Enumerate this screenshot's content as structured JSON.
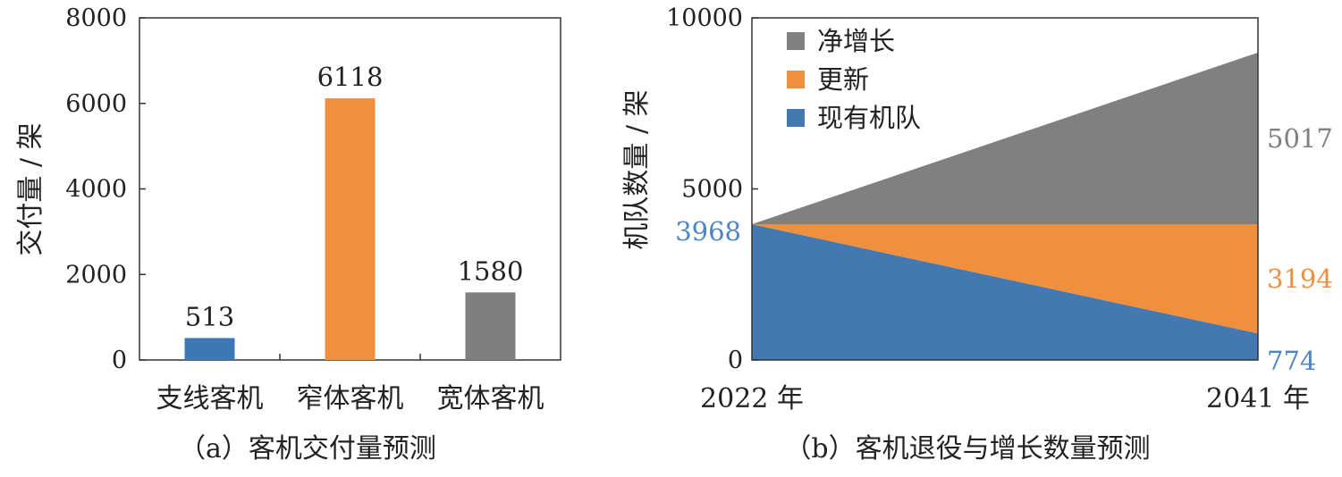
{
  "chart_data": [
    {
      "type": "bar",
      "caption": "（a）客机交付量预测",
      "ylabel": "交付量 / 架",
      "ylim": [
        0,
        8000
      ],
      "yticks": [
        "0",
        "2000",
        "4000",
        "6000",
        "8000"
      ],
      "categories": [
        "支线客机",
        "窄体客机",
        "宽体客机"
      ],
      "values": [
        513,
        6118,
        1580
      ],
      "data_labels": [
        "513",
        "6118",
        "1580"
      ],
      "colors": [
        "#3d78b4",
        "#f0903c",
        "#7f7f7f"
      ],
      "grid": false
    },
    {
      "type": "area",
      "stacked": true,
      "caption": "（b）客机退役与增长数量预测",
      "ylabel": "机队数量 / 架",
      "ylim": [
        0,
        10000
      ],
      "yticks": [
        "0",
        "5000",
        "10000"
      ],
      "x": [
        "2022",
        "2041"
      ],
      "xtick_labels": [
        "2022 年",
        "2041 年"
      ],
      "series": [
        {
          "name": "现有机队",
          "values": [
            3968,
            774
          ],
          "color": "#4378b0"
        },
        {
          "name": "更新",
          "values": [
            0,
            3194
          ],
          "color": "#f0903c"
        },
        {
          "name": "净增长",
          "values": [
            0,
            5017
          ],
          "color": "#808080"
        }
      ],
      "data_labels": {
        "start": "3968",
        "end": [
          "774",
          "3194",
          "5017"
        ],
        "colors": [
          "#4f86bf",
          "#f0903c",
          "#808080"
        ]
      },
      "legend_position": "top-left",
      "legend_order": [
        "净增长",
        "更新",
        "现有机队"
      ],
      "grid": false
    }
  ]
}
